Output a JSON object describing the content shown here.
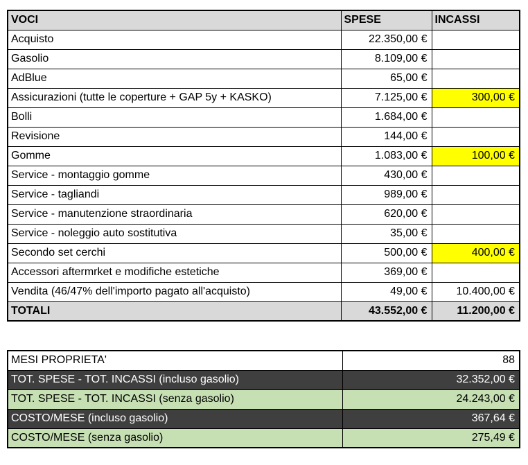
{
  "colors": {
    "header_bg": "#D9D9D9",
    "total_bg": "#D9D9D9",
    "highlight_yellow": "#FFFF00",
    "dark_row_bg": "#3F3F3F",
    "green_row_bg": "#C6E0B4",
    "border": "#000000"
  },
  "table1": {
    "headers": [
      "VOCI",
      "SPESE",
      "INCASSI"
    ],
    "rows": [
      {
        "voce": "Acquisto",
        "spese": "22.350,00 €",
        "incassi": "",
        "incassi_highlight": false
      },
      {
        "voce": "Gasolio",
        "spese": "8.109,00 €",
        "incassi": "",
        "incassi_highlight": false
      },
      {
        "voce": "AdBlue",
        "spese": "65,00 €",
        "incassi": "",
        "incassi_highlight": false
      },
      {
        "voce": "Assicurazioni (tutte le coperture + GAP 5y + KASKO)",
        "spese": "7.125,00 €",
        "incassi": "300,00 €",
        "incassi_highlight": true
      },
      {
        "voce": "Bolli",
        "spese": "1.684,00 €",
        "incassi": "",
        "incassi_highlight": false
      },
      {
        "voce": "Revisione",
        "spese": "144,00 €",
        "incassi": "",
        "incassi_highlight": false
      },
      {
        "voce": "Gomme",
        "spese": "1.083,00 €",
        "incassi": "100,00 €",
        "incassi_highlight": true
      },
      {
        "voce": "Service - montaggio gomme",
        "spese": "430,00 €",
        "incassi": "",
        "incassi_highlight": false
      },
      {
        "voce": "Service - tagliandi",
        "spese": "989,00 €",
        "incassi": "",
        "incassi_highlight": false
      },
      {
        "voce": "Service - manutenzione straordinaria",
        "spese": "620,00 €",
        "incassi": "",
        "incassi_highlight": false
      },
      {
        "voce": "Service - noleggio auto sostitutiva",
        "spese": "35,00 €",
        "incassi": "",
        "incassi_highlight": false
      },
      {
        "voce": "Secondo set cerchi",
        "spese": "500,00 €",
        "incassi": "400,00 €",
        "incassi_highlight": true
      },
      {
        "voce": "Accessori aftermrket e modifiche estetiche",
        "spese": "369,00 €",
        "incassi": "",
        "incassi_highlight": false
      },
      {
        "voce": "Vendita (46/47% dell'importo pagato all'acquisto)",
        "spese": "49,00 €",
        "incassi": "10.400,00 €",
        "incassi_highlight": false
      }
    ],
    "total": {
      "voce": "TOTALI",
      "spese": "43.552,00 €",
      "incassi": "11.200,00 €"
    }
  },
  "table2": {
    "rows": [
      {
        "label": "MESI PROPRIETA'",
        "value": "88",
        "style": "white"
      },
      {
        "label": "TOT. SPESE - TOT. INCASSI (incluso gasolio)",
        "value": "32.352,00 €",
        "style": "dark"
      },
      {
        "label": "TOT. SPESE - TOT. INCASSI (senza gasolio)",
        "value": "24.243,00 €",
        "style": "green"
      },
      {
        "label": "COSTO/MESE (incluso gasolio)",
        "value": "367,64 €",
        "style": "dark"
      },
      {
        "label": "COSTO/MESE (senza gasolio)",
        "value": "275,49 €",
        "style": "green"
      }
    ]
  }
}
